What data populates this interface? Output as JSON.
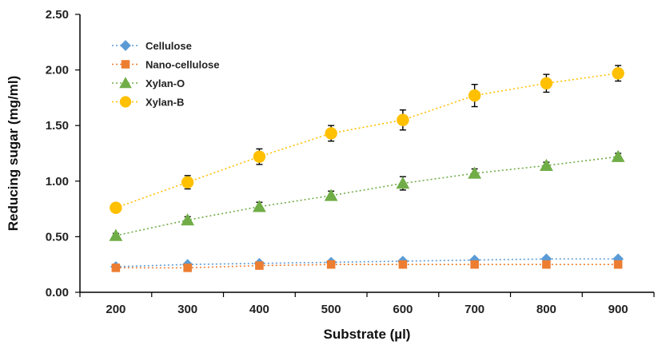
{
  "chart_data": {
    "type": "line",
    "title": "",
    "xlabel": "Substrate (µl)",
    "ylabel": "Reducing sugar (mg/ml)",
    "x": [
      200,
      300,
      400,
      500,
      600,
      700,
      800,
      900
    ],
    "x_tick_labels": [
      "200",
      "300",
      "400",
      "500",
      "600",
      "700",
      "800",
      "900"
    ],
    "ylim": [
      0,
      2.5
    ],
    "y_ticks": [
      0,
      0.5,
      1.0,
      1.5,
      2.0,
      2.5
    ],
    "y_tick_labels": [
      "0.00",
      "0.50",
      "1.00",
      "1.50",
      "2.00",
      "2.50"
    ],
    "grid": false,
    "legend_position": "top-left",
    "series": [
      {
        "name": "Cellulose",
        "marker": "diamond",
        "color": "#5B9BD5",
        "values": [
          0.23,
          0.25,
          0.26,
          0.27,
          0.28,
          0.29,
          0.3,
          0.3
        ],
        "errors": [
          0.01,
          0.01,
          0.01,
          0.01,
          0.01,
          0.01,
          0.01,
          0.01
        ]
      },
      {
        "name": "Nano-cellulose",
        "marker": "square",
        "color": "#ED7D31",
        "values": [
          0.22,
          0.22,
          0.24,
          0.25,
          0.25,
          0.25,
          0.25,
          0.25
        ],
        "errors": [
          0.01,
          0.01,
          0.01,
          0.01,
          0.01,
          0.01,
          0.01,
          0.01
        ]
      },
      {
        "name": "Xylan-O",
        "marker": "triangle",
        "color": "#70AD47",
        "values": [
          0.51,
          0.65,
          0.77,
          0.87,
          0.98,
          1.07,
          1.14,
          1.22
        ],
        "errors": [
          0.02,
          0.03,
          0.04,
          0.04,
          0.06,
          0.04,
          0.03,
          0.03
        ]
      },
      {
        "name": "Xylan-B",
        "marker": "circle",
        "color": "#FFC000",
        "values": [
          0.76,
          0.99,
          1.22,
          1.43,
          1.55,
          1.77,
          1.88,
          1.97
        ],
        "errors": [
          0.04,
          0.06,
          0.07,
          0.07,
          0.09,
          0.1,
          0.08,
          0.07
        ]
      }
    ]
  }
}
